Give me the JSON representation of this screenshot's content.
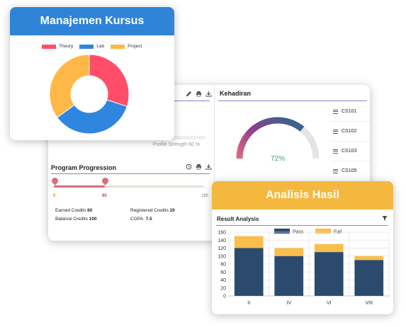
{
  "dashboard": {
    "tools_left": [
      "pencil-icon",
      "printer-icon",
      "download-icon"
    ],
    "profile_strength": "Profile Strength 60 %",
    "program_progression": {
      "title": "Program Progression",
      "tools": [
        "history-icon",
        "printer-icon",
        "download-icon"
      ],
      "markers": [
        "0",
        "60",
        "180"
      ],
      "earned_label": "Earned Credits",
      "earned_value": "60",
      "registered_label": "Registered Credits",
      "registered_value": "20",
      "balance_label": "Balance Credits",
      "balance_value": "100",
      "cgpa_label": "CGPA:",
      "cgpa_value": "7.5"
    },
    "kehadiran": {
      "title": "Kehadiran",
      "gauge_value": "72%",
      "gauge_fraction": 0.72,
      "courses": [
        "CS101",
        "CS102",
        "CS103",
        "CS105"
      ]
    }
  },
  "kursus": {
    "header": "Manajemen Kursus",
    "colors": {
      "header": "#2f84d8"
    },
    "chart_data": {
      "type": "pie",
      "categories": [
        "Theory",
        "Lab",
        "Project"
      ],
      "values": [
        30,
        35,
        35
      ],
      "colors": [
        "#ff4d6a",
        "#2f86de",
        "#ffb845"
      ],
      "legend": "top"
    }
  },
  "analisis": {
    "header": "Analisis Hasil",
    "colors": {
      "header": "#f5b83f"
    },
    "panel_title": "Result Analysis",
    "chart_data": {
      "type": "bar",
      "stacked": true,
      "categories": [
        "II",
        "IV",
        "VI",
        "VIII"
      ],
      "series": [
        {
          "name": "Pass",
          "values": [
            120,
            100,
            110,
            90
          ],
          "color": "#2b4a6e"
        },
        {
          "name": "Fail",
          "values": [
            30,
            20,
            20,
            10
          ],
          "color": "#f9be4b"
        }
      ],
      "ylim": [
        0,
        160
      ],
      "yticks": [
        "0",
        "20",
        "40",
        "60",
        "80",
        "100",
        "120",
        "140",
        "160"
      ],
      "grid": true,
      "legend": "top"
    }
  }
}
